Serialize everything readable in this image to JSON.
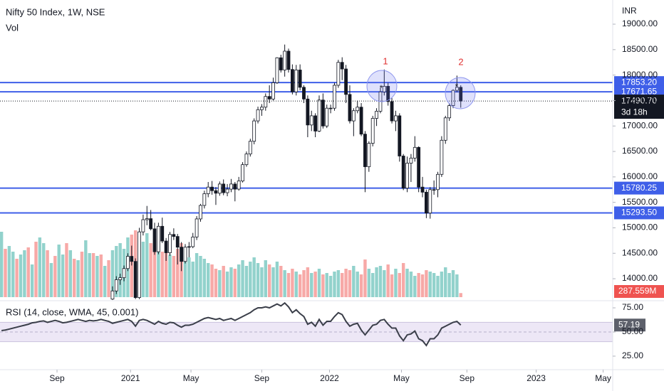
{
  "header": {
    "title": "Nifty 50 Index, 1W, NSE",
    "volume_title": "Vol",
    "currency": "INR"
  },
  "annotations": [
    {
      "text": "1",
      "marker": "*"
    },
    {
      "text": "2",
      "marker": "*"
    }
  ],
  "chart_data": {
    "type": "candlestick",
    "x": [
      0,
      1,
      2,
      3,
      4,
      5,
      6,
      7,
      8,
      9,
      10,
      11,
      12,
      13,
      14,
      15,
      16,
      17,
      18,
      19,
      20,
      21,
      22,
      23,
      24,
      25,
      26,
      27,
      28,
      29,
      30,
      31,
      32,
      33,
      34,
      35,
      36,
      37,
      38,
      39,
      40,
      41,
      42,
      43,
      44,
      45,
      46,
      47,
      48,
      49,
      50,
      51,
      52,
      53,
      54,
      55,
      56,
      57,
      58,
      59,
      60,
      61,
      62,
      63,
      64,
      65,
      66,
      67,
      68,
      69,
      70,
      71,
      72,
      73,
      74,
      75,
      76,
      77,
      78,
      79,
      80,
      81,
      82,
      83,
      84,
      85,
      86,
      87,
      88,
      89,
      90,
      91,
      92,
      93,
      94,
      95,
      96,
      97,
      98,
      99,
      100,
      101,
      102,
      103,
      104,
      105,
      106,
      107,
      108,
      109,
      110,
      111,
      112,
      113,
      114,
      115,
      116,
      117,
      118,
      119,
      120
    ],
    "xlim": [
      -0.4,
      159.7
    ],
    "xticks": [
      {
        "value": 14.5,
        "label": "Sep"
      },
      {
        "value": 33.7,
        "label": "2021"
      },
      {
        "value": 49.5,
        "label": "May"
      },
      {
        "value": 68,
        "label": "Sep"
      },
      {
        "value": 85.7,
        "label": "2022"
      },
      {
        "value": 104.5,
        "label": "May"
      },
      {
        "value": 121.6,
        "label": "Sep"
      },
      {
        "value": 139.7,
        "label": "2023"
      },
      {
        "value": 157.2,
        "label": "May"
      }
    ],
    "ylim": [
      13610,
      19475
    ],
    "yticks": [
      {
        "value": 14000,
        "label": "14000.00"
      },
      {
        "value": 14500,
        "label": "14500.00"
      },
      {
        "value": 15000,
        "label": "15000.00"
      },
      {
        "value": 15500,
        "label": "15500.00"
      },
      {
        "value": 16000,
        "label": "16000.00"
      },
      {
        "value": 16500,
        "label": "16500.00"
      },
      {
        "value": 17000,
        "label": "17000.00"
      },
      {
        "value": 17500,
        "label": "17500.00"
      },
      {
        "value": 18000,
        "label": "18000.00"
      },
      {
        "value": 18500,
        "label": "18500.00"
      },
      {
        "value": 19000,
        "label": "19000.00"
      }
    ],
    "candle_colors": {
      "up": "#ffffff",
      "down": "#131722",
      "wick": "#131722"
    },
    "ohlc": [
      null,
      null,
      null,
      null,
      null,
      null,
      null,
      null,
      null,
      null,
      null,
      null,
      null,
      null,
      null,
      null,
      null,
      null,
      null,
      null,
      null,
      null,
      null,
      null,
      null,
      null,
      null,
      null,
      null,
      [
        13600,
        13850,
        13520,
        13760
      ],
      [
        13760,
        14050,
        13700,
        13980
      ],
      [
        13980,
        14100,
        13880,
        14020
      ],
      [
        14020,
        14260,
        13950,
        14200
      ],
      [
        14200,
        14500,
        14150,
        14440
      ],
      [
        14440,
        14650,
        14260,
        14340
      ],
      [
        14340,
        14400,
        13600,
        13630
      ],
      [
        13630,
        15000,
        13600,
        14920
      ],
      [
        14920,
        15260,
        14850,
        15160
      ],
      [
        15160,
        15430,
        15050,
        15180
      ],
      [
        15180,
        15350,
        14950,
        14980
      ],
      [
        14980,
        15100,
        14470,
        14530
      ],
      [
        14530,
        15100,
        14480,
        15030
      ],
      [
        15030,
        15200,
        14700,
        14740
      ],
      [
        14740,
        14800,
        14350,
        14510
      ],
      [
        14510,
        14920,
        14450,
        14870
      ],
      [
        14870,
        14990,
        14760,
        14830
      ],
      [
        14830,
        14880,
        14280,
        14620
      ],
      [
        14620,
        14720,
        14150,
        14340
      ],
      [
        14340,
        14680,
        14300,
        14620
      ],
      [
        14620,
        14720,
        14420,
        14630
      ],
      [
        14630,
        14900,
        14600,
        14820
      ],
      [
        14820,
        15230,
        14760,
        15175
      ],
      [
        15175,
        15470,
        15120,
        15440
      ],
      [
        15440,
        15730,
        15380,
        15670
      ],
      [
        15670,
        15900,
        15600,
        15800
      ],
      [
        15800,
        15920,
        15650,
        15730
      ],
      [
        15730,
        15800,
        15450,
        15680
      ],
      [
        15680,
        15910,
        15630,
        15860
      ],
      [
        15860,
        15950,
        15640,
        15690
      ],
      [
        15690,
        15860,
        15620,
        15760
      ],
      [
        15760,
        15960,
        15700,
        15860
      ],
      [
        15860,
        15900,
        15520,
        15760
      ],
      [
        15760,
        16000,
        15730,
        15920
      ],
      [
        15920,
        16290,
        15890,
        16240
      ],
      [
        16240,
        16500,
        16200,
        16450
      ],
      [
        16450,
        16750,
        16400,
        16700
      ],
      [
        16700,
        17150,
        16640,
        17100
      ],
      [
        17100,
        17380,
        17050,
        17320
      ],
      [
        17320,
        17430,
        17200,
        17370
      ],
      [
        17370,
        17640,
        17300,
        17580
      ],
      [
        17580,
        17800,
        17450,
        17530
      ],
      [
        17530,
        17950,
        17500,
        17850
      ],
      [
        17850,
        18350,
        17830,
        18340
      ],
      [
        18340,
        18400,
        18050,
        18100
      ],
      [
        18100,
        18600,
        17970,
        18470
      ],
      [
        18470,
        18520,
        18050,
        18110
      ],
      [
        18110,
        18210,
        17620,
        17670
      ],
      [
        17670,
        18200,
        17600,
        18100
      ],
      [
        18100,
        18210,
        17700,
        17760
      ],
      [
        17760,
        17800,
        17450,
        17530
      ],
      [
        17530,
        17600,
        16780,
        17020
      ],
      [
        17020,
        17300,
        16900,
        17200
      ],
      [
        17200,
        17250,
        16780,
        16900
      ],
      [
        16900,
        17600,
        16880,
        17510
      ],
      [
        17510,
        17640,
        16950,
        17000
      ],
      [
        17000,
        17420,
        16960,
        17350
      ],
      [
        17350,
        17420,
        17250,
        17350
      ],
      [
        17350,
        17850,
        17300,
        17800
      ],
      [
        17800,
        18300,
        17750,
        18250
      ],
      [
        18250,
        18350,
        17900,
        18120
      ],
      [
        18120,
        18200,
        17450,
        17620
      ],
      [
        17620,
        17800,
        17050,
        17100
      ],
      [
        17100,
        17350,
        16800,
        17300
      ],
      [
        17300,
        17500,
        17250,
        17370
      ],
      [
        17370,
        17450,
        16800,
        16840
      ],
      [
        16840,
        16900,
        15700,
        16200
      ],
      [
        16200,
        16700,
        16100,
        16660
      ],
      [
        16660,
        17200,
        16600,
        17150
      ],
      [
        17150,
        17350,
        17000,
        17290
      ],
      [
        17290,
        17750,
        17250,
        17670
      ],
      [
        17670,
        18110,
        17600,
        17780
      ],
      [
        17780,
        17850,
        17400,
        17480
      ],
      [
        17480,
        17550,
        17050,
        17100
      ],
      [
        17100,
        17300,
        16900,
        17200
      ],
      [
        17200,
        17250,
        16300,
        16410
      ],
      [
        16410,
        16450,
        15740,
        15780
      ],
      [
        15780,
        16400,
        15700,
        16270
      ],
      [
        16270,
        16450,
        15900,
        16370
      ],
      [
        16370,
        16800,
        16300,
        16580
      ],
      [
        16580,
        16600,
        15700,
        15800
      ],
      [
        15800,
        16000,
        15600,
        15700
      ],
      [
        15700,
        15750,
        15190,
        15290
      ],
      [
        15290,
        15800,
        15180,
        15750
      ],
      [
        15750,
        15930,
        15650,
        15750
      ],
      [
        15750,
        16100,
        15600,
        16050
      ],
      [
        16050,
        16800,
        16000,
        16720
      ],
      [
        16720,
        17200,
        16650,
        17160
      ],
      [
        17160,
        17450,
        17100,
        17400
      ],
      [
        17400,
        17720,
        17350,
        17700
      ],
      [
        17700,
        17990,
        17660,
        17760
      ],
      [
        17760,
        17800,
        17360,
        17490.7
      ]
    ],
    "hline_color": "#3f5fe8",
    "hlines": [
      {
        "value": 17853.2,
        "label": "17853.20"
      },
      {
        "value": 17671.65,
        "label": "17671.65"
      },
      {
        "value": 15780.25,
        "label": "15780.25"
      },
      {
        "value": 15293.5,
        "label": "15293.50"
      }
    ],
    "last_price": {
      "value": 17490.7,
      "label": "17490.70",
      "countdown": "3d 18h"
    },
    "volume": {
      "vlim": [
        0,
        5000
      ],
      "last_label": "287.559M",
      "values": [
        4600,
        3400,
        3600,
        3200,
        2700,
        3000,
        3300,
        3500,
        2300,
        3900,
        4200,
        3800,
        3300,
        2400,
        2900,
        3700,
        3000,
        3800,
        3300,
        2700,
        2600,
        3200,
        4000,
        3100,
        3100,
        2900,
        3000,
        2200,
        2600,
        3300,
        3600,
        3800,
        3400,
        4200,
        4400,
        4700,
        4300,
        3900,
        4500,
        3800,
        4100,
        3600,
        3200,
        3700,
        3000,
        2900,
        3400,
        3800,
        2600,
        2800,
        2500,
        3100,
        2900,
        2700,
        2400,
        2300,
        2000,
        1900,
        2200,
        1800,
        2100,
        2000,
        2300,
        2600,
        2200,
        2500,
        2800,
        2400,
        2100,
        2600,
        2300,
        2100,
        2500,
        2200,
        1900,
        1700,
        2000,
        1800,
        1600,
        1900,
        2100,
        1700,
        1800,
        2000,
        1600,
        1700,
        1500,
        1800,
        1900,
        1700,
        2000,
        1900,
        2200,
        1800,
        1600,
        2650,
        2000,
        1700,
        2100,
        2200,
        1900,
        2300,
        1600,
        2000,
        1700,
        2400,
        2000,
        1800,
        1500,
        1700,
        1600,
        1900,
        1800,
        1700,
        1500,
        1800,
        2100,
        1700,
        1900,
        1600,
        287.559
      ],
      "colors": [
        "#92d2cc",
        "#f7a9a7",
        "#92d2cc",
        "#92d2cc",
        "#f7a9a7",
        "#92d2cc",
        "#92d2cc",
        "#f7a9a7",
        "#92d2cc",
        "#f7a9a7",
        "#92d2cc",
        "#92d2cc",
        "#f7a9a7",
        "#92d2cc",
        "#f7a9a7",
        "#92d2cc",
        "#92d2cc",
        "#f7a9a7",
        "#92d2cc",
        "#f7a9a7",
        "#92d2cc",
        "#f7a9a7",
        "#92d2cc",
        "#92d2cc",
        "#f7a9a7",
        "#92d2cc",
        "#f7a9a7",
        "#92d2cc",
        "#f7a9a7",
        "#92d2cc",
        "#92d2cc",
        "#92d2cc",
        "#92d2cc",
        "#92d2cc",
        "#f7a9a7",
        "#f7a9a7",
        "#92d2cc",
        "#92d2cc",
        "#92d2cc",
        "#f7a9a7",
        "#f7a9a7",
        "#92d2cc",
        "#f7a9a7",
        "#f7a9a7",
        "#92d2cc",
        "#f7a9a7",
        "#f7a9a7",
        "#f7a9a7",
        "#92d2cc",
        "#92d2cc",
        "#92d2cc",
        "#92d2cc",
        "#92d2cc",
        "#92d2cc",
        "#92d2cc",
        "#f7a9a7",
        "#f7a9a7",
        "#92d2cc",
        "#f7a9a7",
        "#92d2cc",
        "#92d2cc",
        "#f7a9a7",
        "#92d2cc",
        "#92d2cc",
        "#92d2cc",
        "#92d2cc",
        "#92d2cc",
        "#92d2cc",
        "#92d2cc",
        "#92d2cc",
        "#f7a9a7",
        "#92d2cc",
        "#92d2cc",
        "#f7a9a7",
        "#92d2cc",
        "#f7a9a7",
        "#f7a9a7",
        "#92d2cc",
        "#f7a9a7",
        "#f7a9a7",
        "#f7a9a7",
        "#92d2cc",
        "#f7a9a7",
        "#92d2cc",
        "#f7a9a7",
        "#92d2cc",
        "#92d2cc",
        "#92d2cc",
        "#92d2cc",
        "#f7a9a7",
        "#f7a9a7",
        "#f7a9a7",
        "#92d2cc",
        "#92d2cc",
        "#f7a9a7",
        "#f7a9a7",
        "#92d2cc",
        "#92d2cc",
        "#92d2cc",
        "#92d2cc",
        "#92d2cc",
        "#f7a9a7",
        "#f7a9a7",
        "#92d2cc",
        "#f7a9a7",
        "#f7a9a7",
        "#92d2cc",
        "#92d2cc",
        "#92d2cc",
        "#f7a9a7",
        "#f7a9a7",
        "#f7a9a7",
        "#92d2cc",
        "#92d2cc",
        "#92d2cc",
        "#92d2cc",
        "#92d2cc",
        "#92d2cc",
        "#92d2cc",
        "#92d2cc",
        "#f7a9a7"
      ]
    },
    "rsi": {
      "title": "RSI (14, close, WMA, 45, 0.001)",
      "color": "#3a3e49",
      "band": [
        40,
        60
      ],
      "ylim": [
        11,
        80.9
      ],
      "yticks": [
        {
          "value": 25,
          "label": "25.00"
        },
        {
          "value": 50,
          "label": "50.00"
        },
        {
          "value": 75,
          "label": "75.00"
        }
      ],
      "last_label": "57.19",
      "values": [
        51.5,
        52,
        53,
        54,
        55,
        56,
        57,
        58,
        59.5,
        60,
        61,
        61.5,
        60,
        61,
        62,
        61,
        59.5,
        60,
        61,
        62,
        63,
        62,
        61,
        62,
        61.5,
        62,
        63,
        62,
        61,
        59,
        60,
        61,
        62,
        63,
        61,
        56,
        62,
        63,
        62,
        60,
        58,
        61,
        59,
        58,
        60,
        59.5,
        57,
        55,
        57,
        57,
        58,
        60,
        62,
        64,
        65,
        64,
        63,
        64,
        62,
        63,
        64,
        62,
        64,
        66,
        68,
        70,
        73,
        75,
        75,
        76,
        75,
        77,
        79,
        77,
        80,
        76,
        70,
        73,
        69,
        66,
        58,
        60,
        56,
        63,
        57,
        61,
        61,
        66,
        70,
        68,
        61,
        56,
        58,
        59,
        52,
        47,
        52,
        57,
        58,
        62,
        63,
        58,
        54,
        54,
        46,
        41,
        47,
        48,
        51,
        43,
        41,
        36,
        43,
        43,
        47,
        54,
        56,
        58,
        60,
        61,
        57.19
      ]
    }
  }
}
